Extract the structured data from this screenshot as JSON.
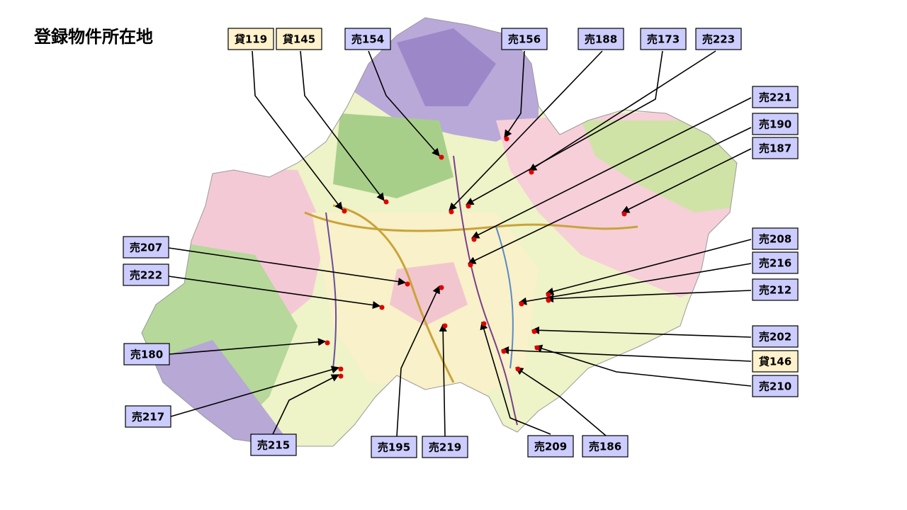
{
  "title": "登録物件所在地",
  "labels": [
    "貸119",
    "貸145",
    "売154",
    "売156",
    "売188",
    "売173",
    "売223",
    "売221",
    "売190",
    "売187",
    "売208",
    "売216",
    "売212",
    "売202",
    "貸146",
    "売210",
    "売186",
    "売209",
    "売219",
    "売195",
    "売215",
    "売217",
    "売180",
    "売222",
    "売207"
  ]
}
